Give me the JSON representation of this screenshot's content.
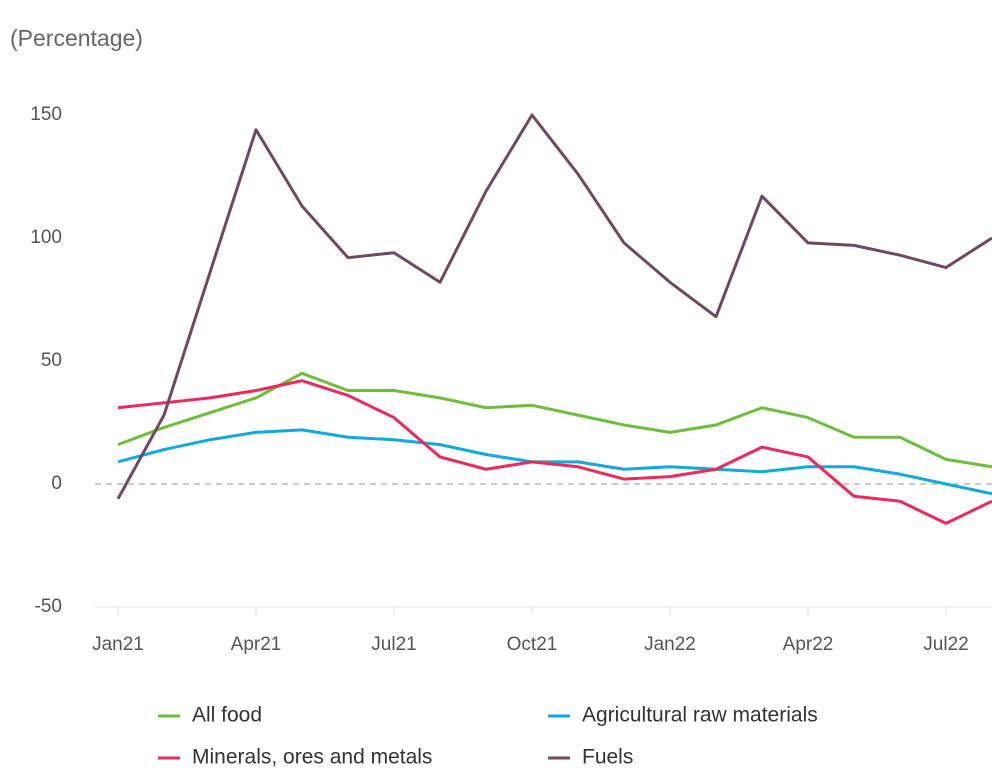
{
  "chart_data": {
    "type": "line",
    "subtitle": "(Percentage)",
    "categories": [
      "Jan21",
      null,
      null,
      "Apr21",
      null,
      null,
      "Jul21",
      null,
      null,
      "Oct21",
      null,
      null,
      "Jan22",
      null,
      null,
      "Apr22",
      null,
      null,
      "Jul22",
      null
    ],
    "series": [
      {
        "name": "All food",
        "color": "#6cbf3c",
        "values": [
          16,
          23,
          29,
          35,
          45,
          38,
          38,
          35,
          31,
          32,
          28,
          24,
          21,
          24,
          31,
          27,
          19,
          19,
          10,
          7
        ]
      },
      {
        "name": "Agricultural raw materials",
        "color": "#12a8e0",
        "values": [
          9,
          14,
          18,
          21,
          22,
          19,
          18,
          16,
          12,
          9,
          9,
          6,
          7,
          6,
          5,
          7,
          7,
          4,
          0,
          -4
        ]
      },
      {
        "name": "Minerals, ores and metals",
        "color": "#ee2a5d",
        "values": [
          31,
          33,
          35,
          38,
          42,
          36,
          27,
          11,
          6,
          9,
          7,
          2,
          3,
          6,
          15,
          11,
          -5,
          -7,
          -16,
          -7
        ]
      },
      {
        "name": "Fuels",
        "color": "#6e4a5e",
        "values": [
          -6,
          28,
          86,
          144,
          113,
          92,
          94,
          82,
          119,
          150,
          126,
          98,
          82,
          68,
          117,
          98,
          97,
          93,
          88,
          100
        ]
      }
    ],
    "ylim": [
      -50,
      150
    ],
    "yticks": [
      -50,
      0,
      50,
      100,
      150
    ],
    "zero_line": true
  }
}
